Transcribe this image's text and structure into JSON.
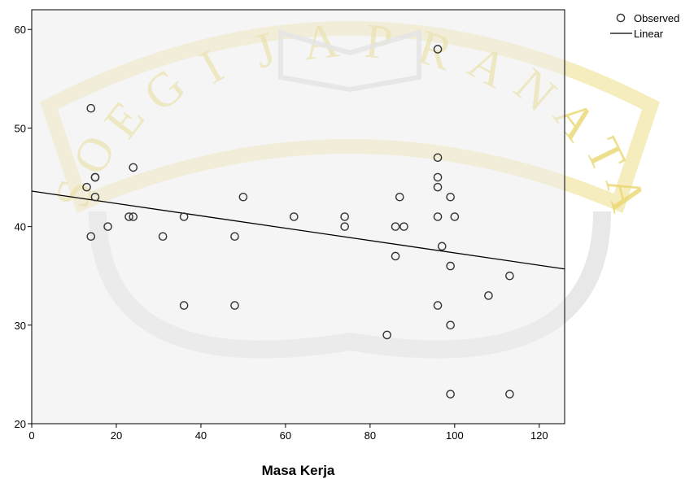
{
  "chart_data": {
    "type": "scatter",
    "xlabel": "Masa Kerja",
    "ylabel": "",
    "xlim": [
      0,
      126
    ],
    "ylim": [
      20,
      62
    ],
    "x_ticks": [
      0,
      20,
      40,
      60,
      80,
      100,
      120
    ],
    "y_ticks": [
      20,
      30,
      40,
      50,
      60
    ],
    "plot_background": "#ededed",
    "marker_color": "#333333",
    "line_color": "#000000",
    "legend_position": "top-right",
    "legend": {
      "observed_label": "Observed",
      "linear_label": "Linear"
    },
    "series": [
      {
        "name": "Observed",
        "points": [
          [
            13,
            44
          ],
          [
            14,
            52
          ],
          [
            14,
            39
          ],
          [
            15,
            45
          ],
          [
            15,
            45
          ],
          [
            15,
            43
          ],
          [
            18,
            40
          ],
          [
            23,
            41
          ],
          [
            24,
            41
          ],
          [
            24,
            46
          ],
          [
            31,
            39
          ],
          [
            36,
            41
          ],
          [
            36,
            32
          ],
          [
            48,
            39
          ],
          [
            48,
            32
          ],
          [
            50,
            43
          ],
          [
            62,
            41
          ],
          [
            74,
            41
          ],
          [
            74,
            40
          ],
          [
            84,
            29
          ],
          [
            86,
            40
          ],
          [
            86,
            37
          ],
          [
            87,
            43
          ],
          [
            88,
            40
          ],
          [
            96,
            58
          ],
          [
            96,
            47
          ],
          [
            96,
            45
          ],
          [
            96,
            44
          ],
          [
            96,
            41
          ],
          [
            96,
            32
          ],
          [
            97,
            38
          ],
          [
            99,
            43
          ],
          [
            99,
            36
          ],
          [
            99,
            30
          ],
          [
            99,
            23
          ],
          [
            100,
            41
          ],
          [
            108,
            33
          ],
          [
            113,
            35
          ],
          [
            113,
            23
          ]
        ]
      },
      {
        "name": "Linear",
        "line": [
          [
            0,
            43.6
          ],
          [
            126,
            35.7
          ]
        ]
      }
    ]
  },
  "watermark": {
    "text": "SOEGIJAPRANATA",
    "color": "#e9d56a"
  }
}
